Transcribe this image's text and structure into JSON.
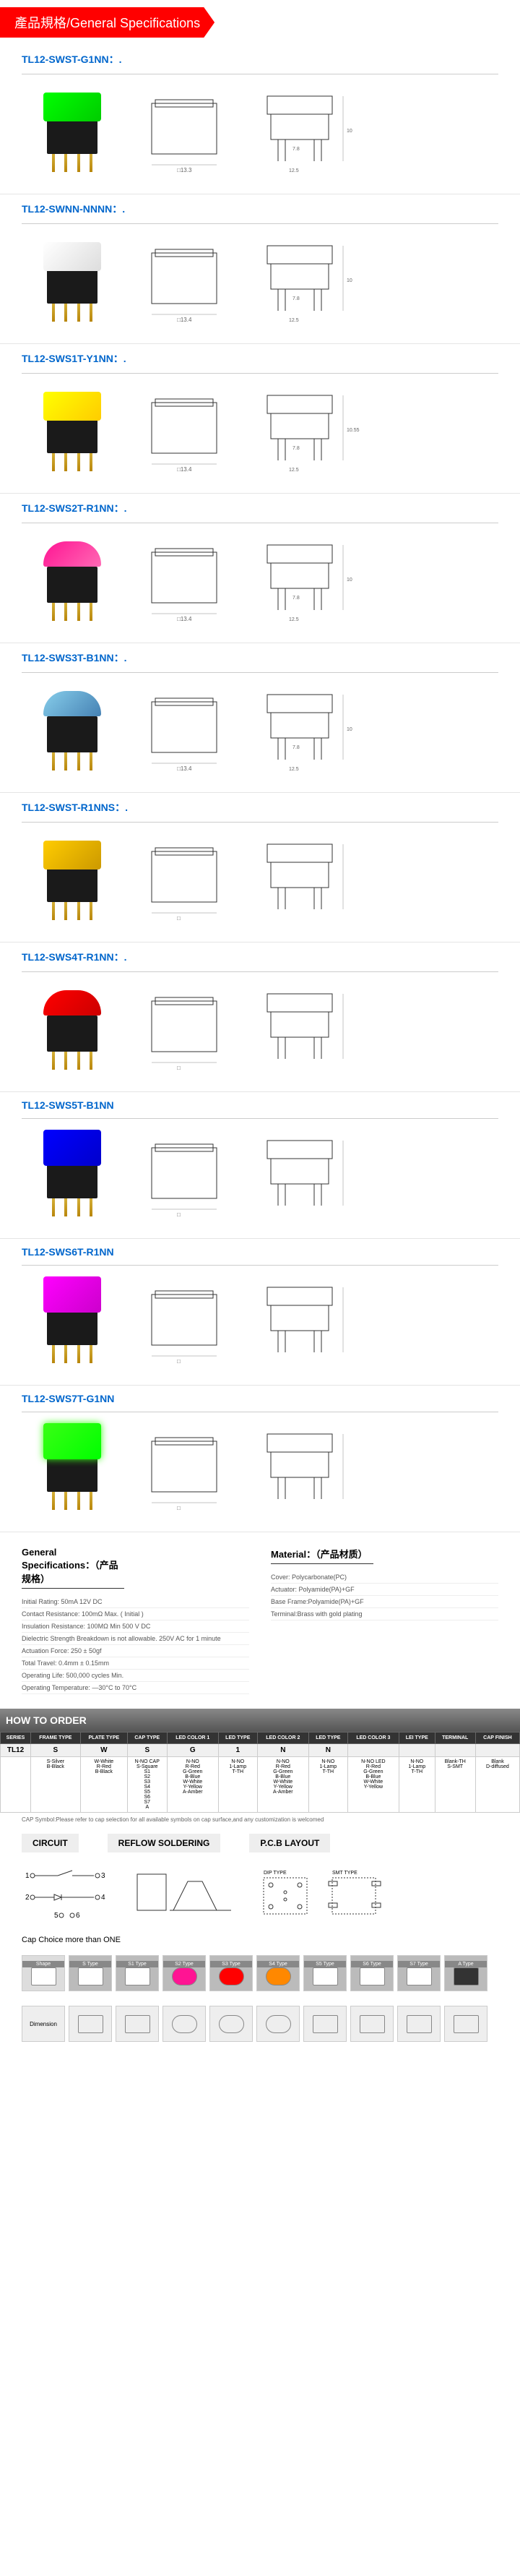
{
  "header": {
    "title": "產品規格/General Specifications"
  },
  "products": [
    {
      "code": "TL12-SWST-G1NN：.",
      "cap_color": "#00cc00",
      "cap_class": "cap-green",
      "shape": "square",
      "dims": {
        "w": "13.3",
        "body": "12.5",
        "pin": "7.8",
        "h": "10"
      }
    },
    {
      "code": "TL12-SWNN-NNNN：.",
      "cap_color": "#eeeeee",
      "cap_class": "cap-white",
      "shape": "square",
      "dims": {
        "w": "13.4",
        "body": "12.5",
        "pin": "7.8",
        "h": "10",
        "cap_h": "2.15"
      }
    },
    {
      "code": "TL12-SWS1T-Y1NN：.",
      "cap_color": "#ffee00",
      "cap_class": "cap-yellow",
      "shape": "square",
      "dims": {
        "w": "13.4",
        "body": "12.5",
        "pin": "7.8",
        "h": "10.55"
      }
    },
    {
      "code": "TL12-SWS2T-R1NN：.",
      "cap_color": "#ff1493",
      "cap_class": "cap-pink",
      "shape": "dome",
      "dims": {
        "w": "13.4",
        "body": "12.5",
        "pin": "7.8",
        "h": "10"
      }
    },
    {
      "code": "TL12-SWS3T-B1NN：.",
      "cap_color": "#87ceeb",
      "cap_class": "cap-lightblue",
      "shape": "dome",
      "dims": {
        "w": "13.4",
        "body": "12.5",
        "pin": "7.8",
        "h": "10"
      }
    },
    {
      "code": "TL12-SWST-R1NNS：.",
      "cap_color": "#ffcc00",
      "cap_class": "cap-darkyellow",
      "shape": "square",
      "dims": {
        "w": "",
        "body": "",
        "pin": "",
        "h": ""
      }
    },
    {
      "code": "TL12-SWS4T-R1NN：.",
      "cap_color": "#ff0000",
      "cap_class": "cap-red",
      "shape": "dome-tall",
      "dims": {
        "w": "",
        "body": "",
        "pin": "",
        "h": ""
      }
    },
    {
      "code": "TL12-SWS5T-B1NN",
      "cap_color": "#0000ff",
      "cap_class": "cap-blue",
      "shape": "square-tall",
      "dims": {
        "w": "",
        "body": "",
        "pin": "",
        "h": ""
      }
    },
    {
      "code": "TL12-SWS6T-R1NN",
      "cap_color": "#ff00ff",
      "cap_class": "cap-magenta",
      "shape": "square-tall",
      "dims": {
        "w": "",
        "body": "",
        "pin": "",
        "h": ""
      }
    },
    {
      "code": "TL12-SWS7T-G1NN",
      "cap_color": "#39ff14",
      "cap_class": "cap-neongreen",
      "shape": "square-tall",
      "dims": {
        "w": "",
        "body": "",
        "pin": "",
        "h": ""
      }
    }
  ],
  "specs": {
    "general_title": "General Specifications：（产品规格）",
    "material_title": "Material：（产品材质）",
    "general_items": [
      "Initial Rating: 50mA 12V DC",
      "Contact Resistance: 100mΩ Max. ( Initial )",
      "Insulation Resistance: 100MΩ Min 500 V DC",
      "Dielectric Strength Breakdown is not allowable.       250V AC for 1 minute",
      "Actuation Force: 250 ± 50gf",
      "Total Travel: 0.4mm ± 0.15mm",
      "Operating Life: 500,000 cycles Min.",
      "Operating Temperature: —30°C to 70°C"
    ],
    "material_items": [
      "Cover: Polycarbonate(PC)",
      "Actuator: Polyamide(PA)+GF",
      "Base Frame:Polyamide(PA)+GF",
      "Terminal:Brass with gold plating"
    ]
  },
  "order": {
    "title": "HOW TO ORDER",
    "columns": [
      "SERIES",
      "FRAME TYPE",
      "PLATE TYPE",
      "CAP TYPE",
      "LED COLOR 1",
      "LED TYPE",
      "LED COLOR 2",
      "LED TYPE",
      "LED COLOR 3",
      "LEI TYPE",
      "TERMINAL",
      "CAP FINISH"
    ],
    "example": [
      "TL12",
      "S",
      "W",
      "S",
      "G",
      "1",
      "N",
      "N",
      "",
      "",
      "",
      ""
    ],
    "options": [
      [
        "S-Silver",
        "B-Black"
      ],
      [
        "W-White",
        "R-Red",
        "B-Black"
      ],
      [
        "N-NO CAP",
        "S-Square",
        "S1",
        "S2",
        "S3",
        "S4",
        "S5",
        "S6",
        "S7",
        "A"
      ],
      [
        "N-NO",
        "R-Red",
        "G-Green",
        "B-Blue",
        "W-White",
        "Y-Yellow",
        "A-Amber"
      ],
      [
        "N-NO",
        "1-Lamp",
        "T-TH"
      ],
      [
        "N-NO",
        "R-Red",
        "G-Green",
        "B-Blue",
        "W-White",
        "Y-Yellow",
        "A-Amber"
      ],
      [
        "N-NO",
        "1-Lamp",
        "T-TH"
      ],
      [
        "N-NO LED",
        "R-Red",
        "G-Green",
        "B-Blue",
        "W-White",
        "Y-Yellow"
      ],
      [
        "N-NO",
        "1-Lamp",
        "T-TH"
      ],
      [
        "Blank-TH",
        "S-SMT"
      ],
      [
        "Blank",
        "D-diffused"
      ]
    ]
  },
  "footer_note": "CAP Symbol:Please refer to cap selection for all available symbols on cap surface,and any customization is welcomed",
  "sections": {
    "circuit": "CIRCUIT",
    "reflow": "REFLOW SOLDERING",
    "pcb": "P.C.B LAYOUT"
  },
  "cap_choice_title": "Cap Choice more than ONE",
  "cap_types": [
    "Shape",
    "S Type",
    "S1 Type",
    "S2 Type",
    "S3 Type",
    "S4 Type",
    "S5 Type",
    "S6 Type",
    "S7 Type",
    "A Type"
  ],
  "dimension_label": "Dimension"
}
